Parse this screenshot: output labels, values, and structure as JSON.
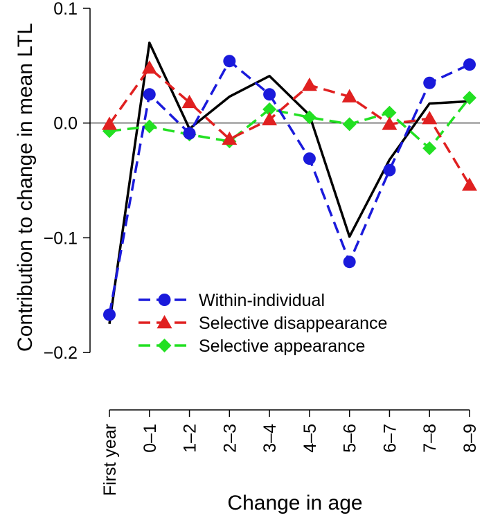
{
  "chart_data": {
    "type": "line",
    "categories": [
      "First year",
      "0–1",
      "1–2",
      "2–3",
      "3–4",
      "4–5",
      "5–6",
      "6–7",
      "7–8",
      "8–9"
    ],
    "xlabel": "Change in age",
    "ylabel": "Contribution to change in mean LTL",
    "ylim": [
      -0.25,
      0.1
    ],
    "yticks": [
      0.1,
      0.0,
      -0.1,
      -0.2
    ],
    "ytick_labels": [
      "0.1",
      "0.0",
      "−0.1",
      "−0.2"
    ],
    "reference_line": 0,
    "grid": false,
    "legend_position": "bottom-center",
    "total": {
      "color": "#000000",
      "values": [
        -0.175,
        0.07,
        -0.005,
        0.023,
        0.041,
        0.007,
        -0.099,
        -0.032,
        0.017,
        0.019
      ]
    },
    "series": [
      {
        "name": "Within-individual",
        "color": "#1a1adb",
        "marker": "circle",
        "values": [
          -0.167,
          0.025,
          -0.009,
          0.054,
          0.025,
          -0.031,
          -0.121,
          -0.041,
          0.035,
          0.051
        ]
      },
      {
        "name": "Selective disappearance",
        "color": "#e02020",
        "marker": "triangle",
        "values": [
          -0.001,
          0.048,
          0.018,
          -0.014,
          0.003,
          0.033,
          0.023,
          -0.001,
          0.004,
          -0.054
        ]
      },
      {
        "name": "Selective appearance",
        "color": "#22e022",
        "marker": "diamond",
        "values": [
          -0.007,
          -0.003,
          -0.01,
          -0.016,
          0.012,
          0.005,
          -0.001,
          0.009,
          -0.022,
          0.022
        ]
      }
    ]
  }
}
